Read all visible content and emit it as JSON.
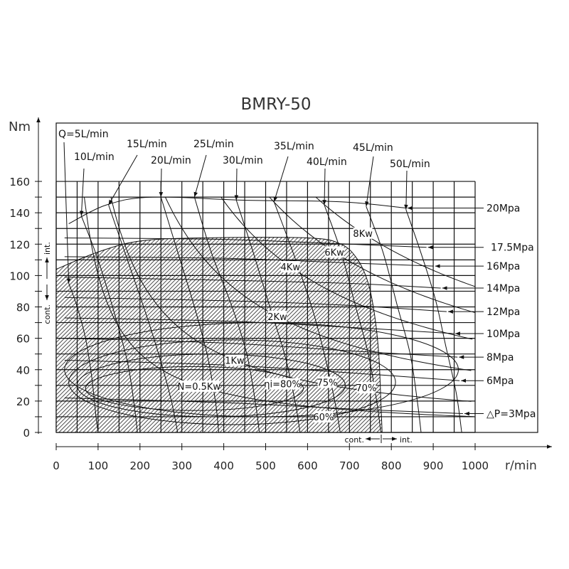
{
  "chart_data": {
    "type": "line",
    "title": "BMRY-50",
    "xlabel": "r/min",
    "ylabel": "Nm",
    "xlim": [
      0,
      1000
    ],
    "ylim": [
      0,
      160
    ],
    "grid": true,
    "xticks": [
      "0",
      "100",
      "200",
      "300",
      "400",
      "500",
      "600",
      "700",
      "800",
      "900",
      "1000"
    ],
    "yticks": [
      "0",
      "20",
      "40",
      "60",
      "80",
      "100",
      "120",
      "140",
      "160"
    ],
    "flow_lines": [
      {
        "label": "Q=5L/min",
        "points": [
          [
            30,
            95
          ],
          [
            50,
            80
          ],
          [
            70,
            60
          ],
          [
            85,
            35
          ],
          [
            95,
            10
          ],
          [
            100,
            0
          ]
        ]
      },
      {
        "label": "10L/min",
        "points": [
          [
            60,
            138
          ],
          [
            100,
            110
          ],
          [
            140,
            75
          ],
          [
            170,
            45
          ],
          [
            185,
            20
          ],
          [
            194,
            0
          ]
        ]
      },
      {
        "label": "15L/min",
        "points": [
          [
            125,
            145
          ],
          [
            170,
            110
          ],
          [
            215,
            75
          ],
          [
            250,
            45
          ],
          [
            275,
            20
          ],
          [
            290,
            0
          ]
        ]
      },
      {
        "label": "20L/min",
        "points": [
          [
            250,
            150
          ],
          [
            290,
            115
          ],
          [
            330,
            80
          ],
          [
            360,
            50
          ],
          [
            380,
            20
          ],
          [
            388,
            0
          ]
        ]
      },
      {
        "label": "25L/min",
        "points": [
          [
            330,
            150
          ],
          [
            370,
            115
          ],
          [
            420,
            80
          ],
          [
            455,
            50
          ],
          [
            475,
            20
          ],
          [
            485,
            0
          ]
        ]
      },
      {
        "label": "30L/min",
        "points": [
          [
            430,
            148
          ],
          [
            470,
            115
          ],
          [
            510,
            80
          ],
          [
            545,
            50
          ],
          [
            570,
            20
          ],
          [
            582,
            0
          ]
        ]
      },
      {
        "label": "35L/min",
        "points": [
          [
            520,
            147
          ],
          [
            565,
            115
          ],
          [
            610,
            80
          ],
          [
            640,
            50
          ],
          [
            665,
            20
          ],
          [
            678,
            0
          ]
        ]
      },
      {
        "label": "40L/min",
        "points": [
          [
            640,
            145
          ],
          [
            680,
            115
          ],
          [
            715,
            80
          ],
          [
            745,
            50
          ],
          [
            765,
            20
          ],
          [
            775,
            0
          ]
        ]
      },
      {
        "label": "45L/min",
        "points": [
          [
            740,
            144
          ],
          [
            780,
            115
          ],
          [
            815,
            80
          ],
          [
            845,
            50
          ],
          [
            862,
            20
          ],
          [
            871,
            0
          ]
        ]
      },
      {
        "label": "50L/min",
        "points": [
          [
            835,
            142
          ],
          [
            870,
            115
          ],
          [
            905,
            85
          ],
          [
            930,
            55
          ],
          [
            955,
            25
          ],
          [
            968,
            0
          ]
        ]
      }
    ],
    "pressure_lines": [
      {
        "label": "20Mpa",
        "points": [
          [
            30,
            133
          ],
          [
            120,
            145
          ],
          [
            230,
            150
          ],
          [
            450,
            148
          ],
          [
            680,
            147
          ],
          [
            835,
            143
          ]
        ]
      },
      {
        "label": "17.5Mpa",
        "points": [
          [
            20,
            124
          ],
          [
            400,
            123
          ],
          [
            700,
            120
          ],
          [
            884,
            118
          ]
        ]
      },
      {
        "label": "16Mpa",
        "points": [
          [
            20,
            112
          ],
          [
            400,
            111
          ],
          [
            700,
            108
          ],
          [
            901,
            106
          ]
        ]
      },
      {
        "label": "14Mpa",
        "points": [
          [
            20,
            99
          ],
          [
            400,
            97
          ],
          [
            700,
            95
          ],
          [
            918,
            92
          ]
        ]
      },
      {
        "label": "12Mpa",
        "points": [
          [
            20,
            86
          ],
          [
            400,
            84
          ],
          [
            700,
            81
          ],
          [
            932,
            77
          ]
        ]
      },
      {
        "label": "10Mpa",
        "points": [
          [
            20,
            73
          ],
          [
            400,
            71
          ],
          [
            700,
            67
          ],
          [
            949,
            63
          ]
        ]
      },
      {
        "label": "8Mpa",
        "points": [
          [
            20,
            60
          ],
          [
            400,
            57
          ],
          [
            700,
            52
          ],
          [
            958,
            48
          ]
        ]
      },
      {
        "label": "6Mpa",
        "points": [
          [
            20,
            46
          ],
          [
            400,
            43
          ],
          [
            700,
            38
          ],
          [
            963,
            33
          ]
        ]
      },
      {
        "label": "△P=3Mpa",
        "points": [
          [
            20,
            22
          ],
          [
            400,
            19
          ],
          [
            700,
            15
          ],
          [
            971,
            12
          ]
        ]
      }
    ],
    "power_curves": [
      {
        "label": "N=0.5Kw",
        "at": [
          341,
          29.5
        ]
      },
      {
        "label": "1Kw",
        "at": [
          426,
          46
        ]
      },
      {
        "label": "2Kw",
        "at": [
          528,
          74
        ]
      },
      {
        "label": "4Kw",
        "at": [
          559,
          105.6
        ]
      },
      {
        "label": "6Kw",
        "at": [
          664,
          115
        ]
      },
      {
        "label": "8Kw",
        "at": [
          732,
          127
        ]
      }
    ],
    "efficiency_contours": [
      {
        "label": "ηi=80%",
        "at": [
          540,
          31
        ],
        "center": [
          330,
          28
        ],
        "half_range": [
          260,
          14
        ]
      },
      {
        "label": "75%",
        "at": [
          647,
          32
        ],
        "center": [
          370,
          30
        ],
        "half_range": [
          320,
          20
        ]
      },
      {
        "label": "70%",
        "at": [
          740,
          28.5
        ],
        "center": [
          420,
          32
        ],
        "half_range": [
          390,
          27
        ]
      },
      {
        "label": "60%",
        "at": [
          638,
          10
        ],
        "center": [
          490,
          40
        ],
        "half_range": [
          470,
          30
        ]
      }
    ],
    "continuous_region": [
      [
        0,
        104
      ],
      [
        100,
        115
      ],
      [
        200,
        122
      ],
      [
        350,
        124
      ],
      [
        600,
        124
      ],
      [
        680,
        120
      ],
      [
        720,
        110
      ],
      [
        745,
        95
      ],
      [
        760,
        75
      ],
      [
        770,
        50
      ],
      [
        775,
        20
      ],
      [
        778,
        0
      ],
      [
        0,
        0
      ]
    ],
    "annotations": {
      "torque_cont": "cont.",
      "torque_int": "int.",
      "speed_cont": "cont.",
      "speed_int": "int."
    }
  }
}
